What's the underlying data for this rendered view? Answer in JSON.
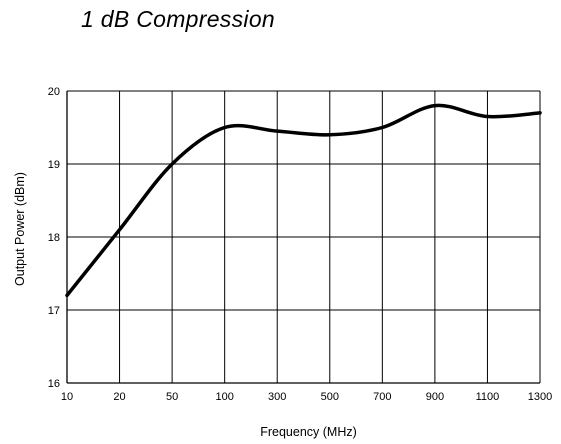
{
  "chart_data": {
    "type": "line",
    "title": "1 dB Compression",
    "xlabel": "Frequency (MHz)",
    "ylabel": "Output Power (dBm)",
    "x_categories": [
      "10",
      "20",
      "50",
      "100",
      "300",
      "500",
      "700",
      "900",
      "1100",
      "1300"
    ],
    "y_ticks": [
      "16",
      "17",
      "18",
      "19",
      "20"
    ],
    "ylim": [
      16,
      20
    ],
    "grid": true,
    "legend": "none",
    "series": [
      {
        "values": [
          17.2,
          18.1,
          19.0,
          19.5,
          19.45,
          19.4,
          19.5,
          19.8,
          19.65,
          19.7
        ]
      }
    ]
  }
}
